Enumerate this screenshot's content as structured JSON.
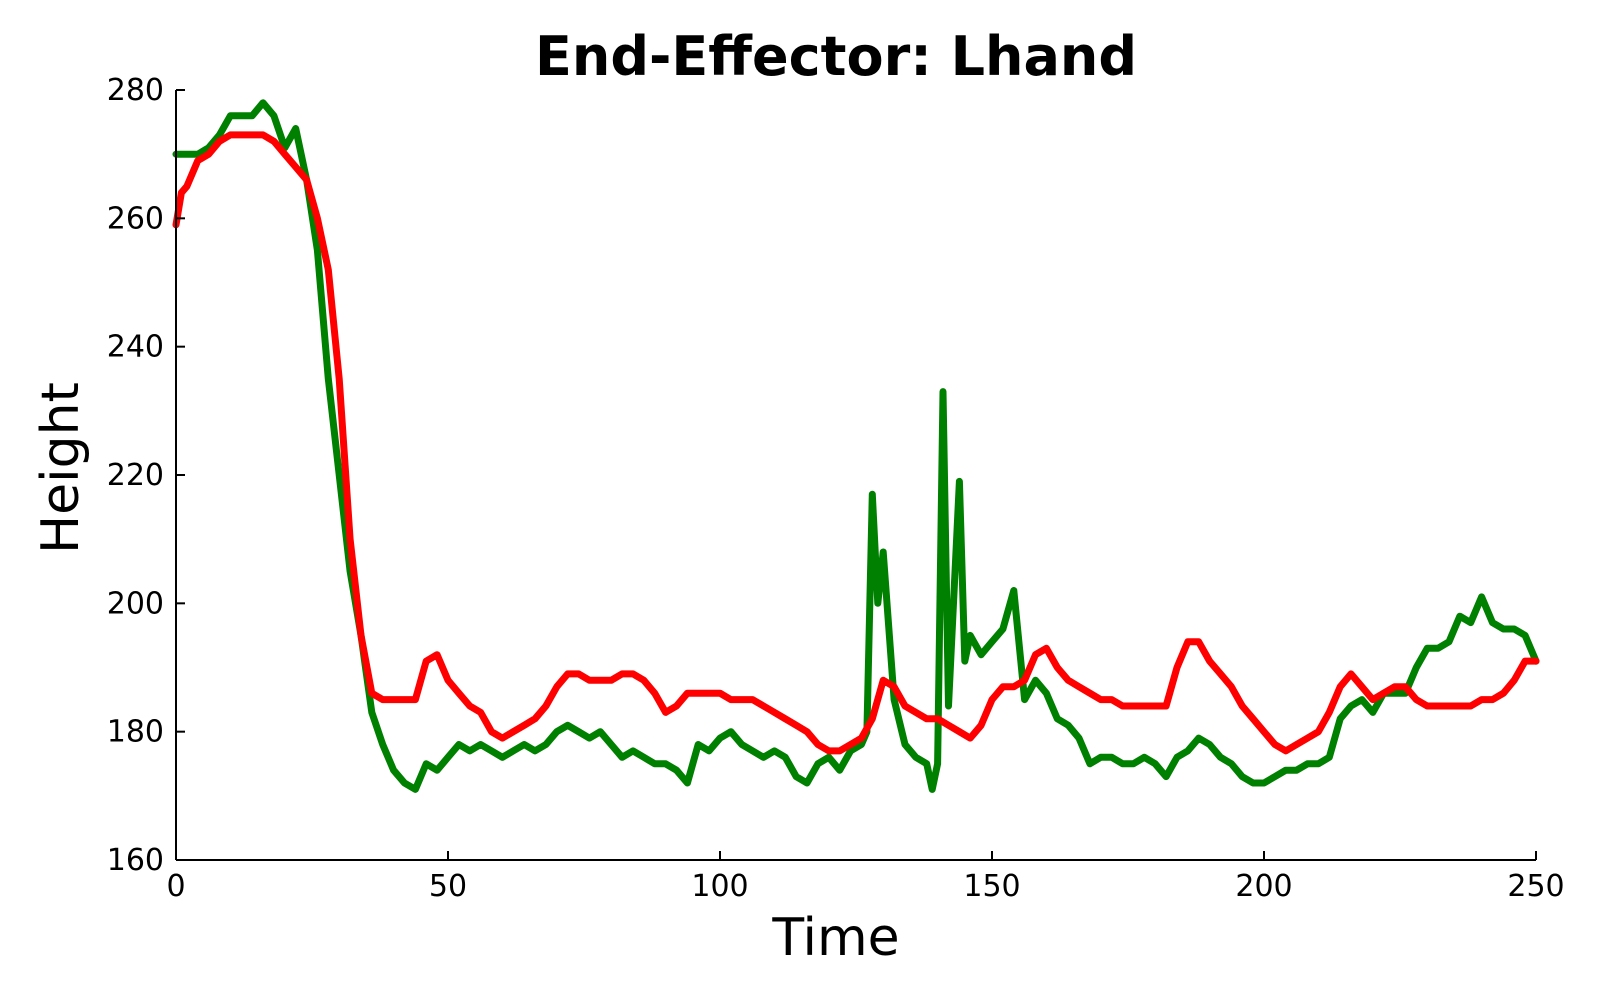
{
  "chart_data": {
    "type": "line",
    "title": "End-Effector: Lhand",
    "xlabel": "Time",
    "ylabel": "Height",
    "xlim": [
      0,
      250
    ],
    "ylim": [
      160,
      280
    ],
    "xticks": [
      0,
      50,
      100,
      150,
      200,
      250
    ],
    "yticks": [
      160,
      180,
      200,
      220,
      240,
      260,
      280
    ],
    "grid": false,
    "legend": "none",
    "series": [
      {
        "color": "#008000",
        "x": [
          0,
          2,
          4,
          6,
          8,
          10,
          12,
          14,
          16,
          18,
          20,
          22,
          24,
          26,
          28,
          30,
          32,
          34,
          36,
          38,
          40,
          42,
          44,
          46,
          48,
          50,
          52,
          54,
          56,
          58,
          60,
          62,
          64,
          66,
          68,
          70,
          72,
          74,
          76,
          78,
          80,
          82,
          84,
          86,
          88,
          90,
          92,
          94,
          96,
          98,
          100,
          102,
          104,
          106,
          108,
          110,
          112,
          114,
          116,
          118,
          120,
          122,
          124,
          126,
          127,
          128,
          129,
          130,
          132,
          134,
          136,
          138,
          139,
          140,
          141,
          142,
          144,
          145,
          146,
          148,
          150,
          152,
          154,
          156,
          158,
          160,
          162,
          164,
          166,
          168,
          170,
          172,
          174,
          176,
          178,
          180,
          182,
          184,
          186,
          188,
          190,
          192,
          194,
          196,
          198,
          200,
          202,
          204,
          206,
          208,
          210,
          212,
          214,
          216,
          218,
          220,
          222,
          224,
          226,
          228,
          230,
          232,
          234,
          236,
          238,
          240,
          242,
          244,
          246,
          248,
          250
        ],
        "y": [
          270,
          270,
          270,
          271,
          273,
          276,
          276,
          276,
          278,
          276,
          271,
          274,
          266,
          255,
          235,
          220,
          205,
          195,
          183,
          178,
          174,
          172,
          171,
          175,
          174,
          176,
          178,
          177,
          178,
          177,
          176,
          177,
          178,
          177,
          178,
          180,
          181,
          180,
          179,
          180,
          178,
          176,
          177,
          176,
          175,
          175,
          174,
          172,
          178,
          177,
          179,
          180,
          178,
          177,
          176,
          177,
          176,
          173,
          172,
          175,
          176,
          174,
          177,
          178,
          180,
          217,
          200,
          208,
          185,
          178,
          176,
          175,
          171,
          175,
          233,
          184,
          219,
          191,
          195,
          192,
          194,
          196,
          202,
          185,
          188,
          186,
          182,
          181,
          179,
          175,
          176,
          176,
          175,
          175,
          176,
          175,
          173,
          176,
          177,
          179,
          178,
          176,
          175,
          173,
          172,
          172,
          173,
          174,
          174,
          175,
          175,
          176,
          182,
          184,
          185,
          183,
          186,
          186,
          186,
          190,
          193,
          193,
          194,
          198,
          197,
          201,
          197,
          196,
          196,
          195,
          191
        ]
      },
      {
        "color": "#ff0000",
        "x": [
          0,
          1,
          2,
          4,
          6,
          8,
          10,
          12,
          14,
          16,
          18,
          20,
          22,
          24,
          26,
          28,
          30,
          32,
          34,
          36,
          38,
          40,
          42,
          44,
          46,
          48,
          50,
          52,
          54,
          56,
          58,
          60,
          62,
          64,
          66,
          68,
          70,
          72,
          74,
          76,
          78,
          80,
          82,
          84,
          86,
          88,
          90,
          92,
          94,
          96,
          98,
          100,
          102,
          104,
          106,
          108,
          110,
          112,
          114,
          116,
          118,
          120,
          122,
          124,
          126,
          128,
          130,
          132,
          134,
          136,
          138,
          140,
          142,
          144,
          146,
          148,
          150,
          152,
          154,
          156,
          158,
          160,
          162,
          164,
          166,
          168,
          170,
          172,
          174,
          176,
          178,
          180,
          182,
          184,
          186,
          188,
          190,
          192,
          194,
          196,
          198,
          200,
          202,
          204,
          206,
          208,
          210,
          212,
          214,
          216,
          218,
          220,
          222,
          224,
          226,
          228,
          230,
          232,
          234,
          236,
          238,
          240,
          242,
          244,
          246,
          248,
          250
        ],
        "y": [
          259,
          264,
          265,
          269,
          270,
          272,
          273,
          273,
          273,
          273,
          272,
          270,
          268,
          266,
          260,
          252,
          235,
          210,
          195,
          186,
          185,
          185,
          185,
          185,
          191,
          192,
          188,
          186,
          184,
          183,
          180,
          179,
          180,
          181,
          182,
          184,
          187,
          189,
          189,
          188,
          188,
          188,
          189,
          189,
          188,
          186,
          183,
          184,
          186,
          186,
          186,
          186,
          185,
          185,
          185,
          184,
          183,
          182,
          181,
          180,
          178,
          177,
          177,
          178,
          179,
          182,
          188,
          187,
          184,
          183,
          182,
          182,
          181,
          180,
          179,
          181,
          185,
          187,
          187,
          188,
          192,
          193,
          190,
          188,
          187,
          186,
          185,
          185,
          184,
          184,
          184,
          184,
          184,
          190,
          194,
          194,
          191,
          189,
          187,
          184,
          182,
          180,
          178,
          177,
          178,
          179,
          180,
          183,
          187,
          189,
          187,
          185,
          186,
          187,
          187,
          185,
          184,
          184,
          184,
          184,
          184,
          185,
          185,
          186,
          188,
          191,
          191
        ]
      }
    ]
  }
}
